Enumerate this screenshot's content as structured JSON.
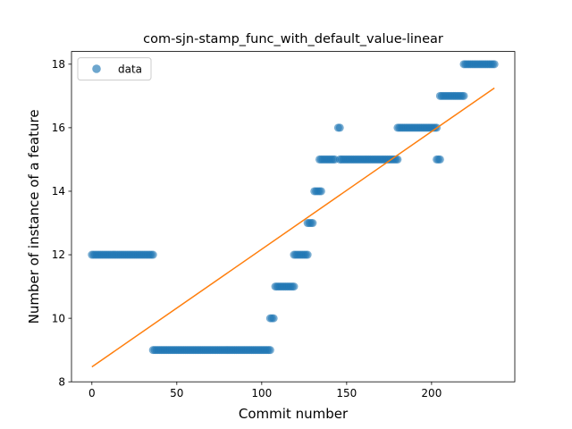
{
  "chart_data": {
    "type": "scatter",
    "title": "com-sjn-stamp_func_with_default_value-linear",
    "xlabel": "Commit number",
    "ylabel": "Number of instance of a feature",
    "xlim": [
      -12,
      249
    ],
    "ylim": [
      8,
      18.4
    ],
    "xticks": [
      0,
      50,
      100,
      150,
      200
    ],
    "yticks": [
      8,
      10,
      12,
      14,
      16,
      18
    ],
    "legend_position": "top-left",
    "grid": false,
    "colors": {
      "data": "#1f77b4",
      "fit": "#ff7f0e"
    },
    "series": [
      {
        "name": "data",
        "kind": "points",
        "segments": [
          {
            "x_start": 0,
            "x_end": 36,
            "y": 12
          },
          {
            "x_start": 36,
            "x_end": 105,
            "y": 9
          },
          {
            "x_start": 105,
            "x_end": 107,
            "y": 10
          },
          {
            "x_start": 108,
            "x_end": 119,
            "y": 11
          },
          {
            "x_start": 119,
            "x_end": 127,
            "y": 12
          },
          {
            "x_start": 127,
            "x_end": 130,
            "y": 13
          },
          {
            "x_start": 131,
            "x_end": 135,
            "y": 14
          },
          {
            "x_start": 134,
            "x_end": 143,
            "y": 15
          },
          {
            "x_start": 145,
            "x_end": 146,
            "y": 16
          },
          {
            "x_start": 146,
            "x_end": 180,
            "y": 15
          },
          {
            "x_start": 180,
            "x_end": 203,
            "y": 16
          },
          {
            "x_start": 203,
            "x_end": 205,
            "y": 15
          },
          {
            "x_start": 205,
            "x_end": 219,
            "y": 17
          },
          {
            "x_start": 219,
            "x_end": 237,
            "y": 18
          }
        ]
      },
      {
        "kind": "line",
        "x": [
          0,
          237
        ],
        "y": [
          8.47,
          17.25
        ]
      }
    ]
  }
}
